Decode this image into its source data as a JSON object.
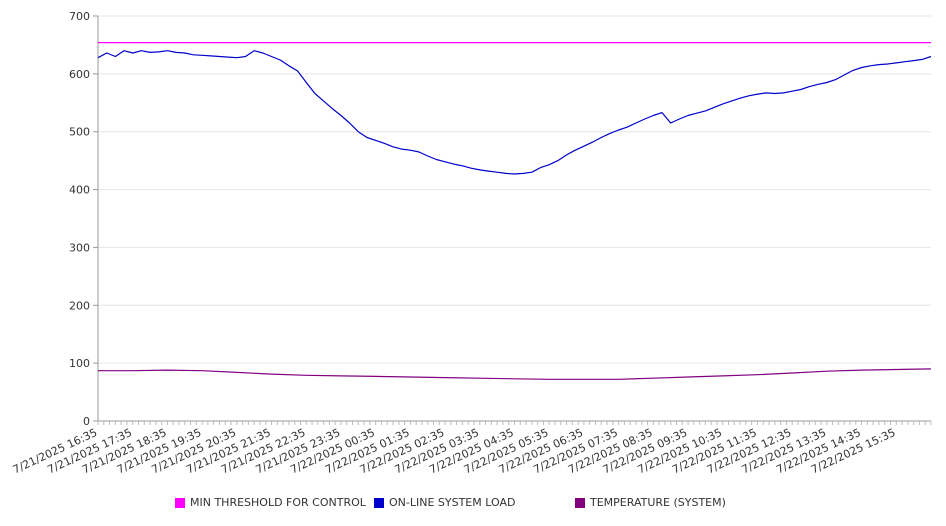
{
  "chart_data": {
    "type": "line",
    "title": "",
    "xlabel": "",
    "ylabel": "",
    "ylim": [
      0,
      700
    ],
    "yticks": [
      0,
      100,
      200,
      300,
      400,
      500,
      600,
      700
    ],
    "xticks": [
      "7/21/2025 16:35",
      "7/21/2025 17:35",
      "7/21/2025 18:35",
      "7/21/2025 19:35",
      "7/21/2025 20:35",
      "7/21/2025 21:35",
      "7/21/2025 22:35",
      "7/21/2025 23:35",
      "7/22/2025 00:35",
      "7/22/2025 01:35",
      "7/22/2025 02:35",
      "7/22/2025 03:35",
      "7/22/2025 04:35",
      "7/22/2025 05:35",
      "7/22/2025 06:35",
      "7/22/2025 07:35",
      "7/22/2025 08:35",
      "7/22/2025 09:35",
      "7/22/2025 10:35",
      "7/22/2025 11:35",
      "7/22/2025 12:35",
      "7/22/2025 13:35",
      "7/22/2025 14:35",
      "7/22/2025 15:35"
    ],
    "x_range": [
      "7/21/2025 16:35",
      "7/22/2025 16:35"
    ],
    "grid": "horizontal",
    "legend_position": "bottom",
    "series": [
      {
        "name": "MIN THRESHOLD FOR CONTROL",
        "color": "#ff00ff",
        "x": [
          "7/21/2025 16:35",
          "7/22/2025 16:35"
        ],
        "y": [
          654,
          654
        ]
      },
      {
        "name": "ON-LINE SYSTEM LOAD",
        "color": "#0000cc",
        "x": [
          "7/21/2025 16:35",
          "7/21/2025 16:50",
          "7/21/2025 17:05",
          "7/21/2025 17:20",
          "7/21/2025 17:35",
          "7/21/2025 17:50",
          "7/21/2025 18:05",
          "7/21/2025 18:20",
          "7/21/2025 18:35",
          "7/21/2025 18:50",
          "7/21/2025 19:05",
          "7/21/2025 19:20",
          "7/21/2025 19:35",
          "7/21/2025 19:50",
          "7/21/2025 20:05",
          "7/21/2025 20:20",
          "7/21/2025 20:35",
          "7/21/2025 20:50",
          "7/21/2025 21:05",
          "7/21/2025 21:20",
          "7/21/2025 21:35",
          "7/21/2025 21:50",
          "7/21/2025 22:05",
          "7/21/2025 22:20",
          "7/21/2025 22:35",
          "7/21/2025 22:50",
          "7/21/2025 23:05",
          "7/21/2025 23:20",
          "7/21/2025 23:35",
          "7/21/2025 23:50",
          "7/22/2025 00:05",
          "7/22/2025 00:20",
          "7/22/2025 00:35",
          "7/22/2025 00:50",
          "7/22/2025 01:05",
          "7/22/2025 01:20",
          "7/22/2025 01:35",
          "7/22/2025 01:50",
          "7/22/2025 02:05",
          "7/22/2025 02:20",
          "7/22/2025 02:35",
          "7/22/2025 02:50",
          "7/22/2025 03:05",
          "7/22/2025 03:20",
          "7/22/2025 03:35",
          "7/22/2025 03:50",
          "7/22/2025 04:05",
          "7/22/2025 04:20",
          "7/22/2025 04:35",
          "7/22/2025 04:50",
          "7/22/2025 05:05",
          "7/22/2025 05:20",
          "7/22/2025 05:35",
          "7/22/2025 05:50",
          "7/22/2025 06:05",
          "7/22/2025 06:20",
          "7/22/2025 06:35",
          "7/22/2025 06:50",
          "7/22/2025 07:05",
          "7/22/2025 07:20",
          "7/22/2025 07:35",
          "7/22/2025 07:50",
          "7/22/2025 08:05",
          "7/22/2025 08:20",
          "7/22/2025 08:35",
          "7/22/2025 08:50",
          "7/22/2025 09:05",
          "7/22/2025 09:20",
          "7/22/2025 09:35",
          "7/22/2025 09:50",
          "7/22/2025 10:05",
          "7/22/2025 10:20",
          "7/22/2025 10:35",
          "7/22/2025 10:50",
          "7/22/2025 11:05",
          "7/22/2025 11:20",
          "7/22/2025 11:35",
          "7/22/2025 11:50",
          "7/22/2025 12:05",
          "7/22/2025 12:20",
          "7/22/2025 12:35",
          "7/22/2025 12:50",
          "7/22/2025 13:05",
          "7/22/2025 13:20",
          "7/22/2025 13:35",
          "7/22/2025 13:50",
          "7/22/2025 14:05",
          "7/22/2025 14:20",
          "7/22/2025 14:35",
          "7/22/2025 14:50",
          "7/22/2025 15:05",
          "7/22/2025 15:20",
          "7/22/2025 15:35",
          "7/22/2025 15:50",
          "7/22/2025 16:05",
          "7/22/2025 16:20",
          "7/22/2025 16:35"
        ],
        "y": [
          628,
          636,
          630,
          640,
          636,
          640,
          637,
          638,
          640,
          637,
          636,
          633,
          632,
          631,
          630,
          629,
          628,
          630,
          640,
          636,
          630,
          624,
          614,
          605,
          585,
          566,
          553,
          540,
          528,
          515,
          500,
          490,
          485,
          480,
          474,
          470,
          468,
          465,
          458,
          452,
          448,
          444,
          441,
          437,
          434,
          432,
          430,
          428,
          427,
          428,
          430,
          438,
          443,
          450,
          460,
          468,
          475,
          482,
          490,
          497,
          503,
          508,
          515,
          522,
          528,
          533,
          515,
          522,
          528,
          532,
          536,
          542,
          548,
          553,
          558,
          562,
          565,
          567,
          566,
          567,
          570,
          573,
          578,
          582,
          585,
          590,
          598,
          606,
          611,
          614,
          616,
          617,
          619,
          621,
          623,
          625,
          630
        ]
      },
      {
        "name": "TEMPERATURE (SYSTEM)",
        "color": "#800080",
        "x": [
          "7/21/2025 16:35",
          "7/21/2025 17:35",
          "7/21/2025 18:35",
          "7/21/2025 19:35",
          "7/21/2025 20:35",
          "7/21/2025 21:35",
          "7/21/2025 22:35",
          "7/21/2025 23:35",
          "7/22/2025 00:35",
          "7/22/2025 01:35",
          "7/22/2025 02:35",
          "7/22/2025 03:35",
          "7/22/2025 04:35",
          "7/22/2025 05:35",
          "7/22/2025 06:35",
          "7/22/2025 07:35",
          "7/22/2025 08:35",
          "7/22/2025 09:35",
          "7/22/2025 10:35",
          "7/22/2025 11:35",
          "7/22/2025 12:35",
          "7/22/2025 13:35",
          "7/22/2025 14:35",
          "7/22/2025 15:35",
          "7/22/2025 16:35"
        ],
        "y": [
          87,
          87,
          88,
          87,
          84,
          81,
          79,
          78,
          77,
          76,
          75,
          74,
          73,
          72,
          72,
          72,
          74,
          76,
          78,
          80,
          83,
          86,
          88,
          89,
          90
        ]
      }
    ]
  }
}
